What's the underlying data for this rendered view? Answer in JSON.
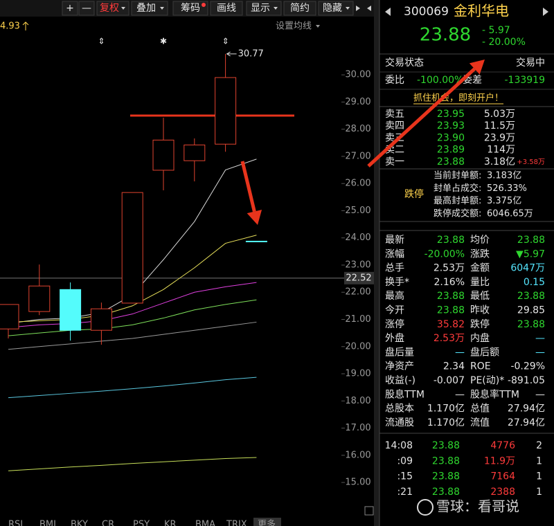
{
  "toolbar": {
    "buttons": [
      {
        "label": "+",
        "dropdown": false
      },
      {
        "label": "—",
        "dropdown": false
      },
      {
        "label": "复权",
        "dropdown": true
      },
      {
        "label": "叠加",
        "dropdown": true
      },
      {
        "label": "筹码",
        "dropdown": false,
        "dot": true
      },
      {
        "label": "画线",
        "dropdown": false
      },
      {
        "label": "显示",
        "dropdown": true
      },
      {
        "label": "简约",
        "dropdown": false
      },
      {
        "label": "隐藏",
        "dropdown": true
      }
    ]
  },
  "chart_data": {
    "type": "candlestick",
    "prev_label": "4.93",
    "ma_setting": "设置均线",
    "markers": [
      null,
      null,
      null,
      "⇕",
      null,
      "✱",
      null,
      "⇕",
      null
    ],
    "open": [
      20.65,
      21.29,
      22.1,
      20.6,
      21.6,
      26.49,
      26.84,
      27.45,
      23.88
    ],
    "close": [
      21.55,
      22.23,
      20.6,
      21.39,
      25.67,
      27.6,
      27.42,
      29.9,
      23.88
    ],
    "high": [
      21.55,
      23.02,
      22.36,
      21.62,
      25.67,
      28.42,
      27.66,
      30.77,
      23.88
    ],
    "low": [
      20.3,
      21.16,
      20.22,
      20.07,
      21.6,
      25.75,
      26.08,
      27.17,
      23.88
    ],
    "up_color": "#e0432f",
    "down_color": "#54fcfc",
    "lines": [
      {
        "color": "#d8d8d8",
        "values": [
          20.85,
          21.0,
          21.05,
          21.25,
          21.9,
          23.2,
          24.6,
          26.5,
          26.9
        ]
      },
      {
        "color": "#e8e05a",
        "values": [
          20.9,
          20.95,
          21.0,
          21.15,
          21.5,
          22.1,
          22.9,
          23.8,
          24.1
        ]
      },
      {
        "color": "#e040e0",
        "values": [
          20.7,
          20.8,
          20.85,
          20.95,
          21.2,
          21.6,
          22.0,
          22.2,
          22.36
        ]
      },
      {
        "color": "#7ee05a",
        "values": [
          20.4,
          20.5,
          20.6,
          20.65,
          20.8,
          21.05,
          21.35,
          21.55,
          21.72
        ]
      },
      {
        "color": "#9a9a9a",
        "values": [
          19.9,
          20.0,
          20.1,
          20.2,
          20.3,
          20.45,
          20.6,
          20.75,
          20.9
        ]
      },
      {
        "color": "#5ac8e0",
        "values": [
          18.12,
          18.2,
          18.28,
          18.36,
          18.45,
          18.55,
          18.66,
          18.78,
          18.87
        ]
      },
      {
        "color": "#c8e05a",
        "values": [
          15.43,
          15.5,
          15.57,
          15.63,
          15.7,
          15.76,
          15.82,
          15.88,
          15.92
        ]
      }
    ],
    "last_price": 22.52,
    "ylim": [
      13.78,
      31.99
    ],
    "yticks": [
      {
        "value": 30,
        "label": "30.00"
      },
      {
        "value": 29,
        "label": "29.00"
      },
      {
        "value": 28,
        "label": "28.00"
      },
      {
        "value": 27,
        "label": "27.00"
      },
      {
        "value": 26,
        "label": "26.00"
      },
      {
        "value": 25,
        "label": "25.00"
      },
      {
        "value": 24,
        "label": "24.00"
      },
      {
        "value": 23,
        "label": "23.00"
      },
      {
        "value": 22,
        "label": "22.00"
      },
      {
        "value": 21,
        "label": "21.00"
      },
      {
        "value": 20,
        "label": "20.00"
      },
      {
        "value": 19,
        "label": "19.00"
      },
      {
        "value": 18,
        "label": "18.00"
      },
      {
        "value": 17,
        "label": "17.00"
      },
      {
        "value": 16,
        "label": "16.00"
      },
      {
        "value": 15,
        "label": "15.00"
      }
    ],
    "indicator_tabs": [
      "RSI",
      "BMI",
      "BKY",
      "CR",
      "PSY",
      "KR",
      "BMA",
      "TRIX",
      "更多"
    ]
  },
  "quote": {
    "code": "300069",
    "name": "金利华电",
    "price": "23.88",
    "change": "- 5.97",
    "change_pct": "- 20.00%"
  },
  "status": {
    "label": "交易状态",
    "value": "交易中"
  },
  "commission": {
    "ratio_label": "委比",
    "ratio": "-100.00%",
    "diff_label": "委差",
    "diff": "-133919"
  },
  "banner": "抓住机会，即刻开户！",
  "asks": [
    {
      "level": "卖五",
      "price": "23.95",
      "volume": "5.03万"
    },
    {
      "level": "卖四",
      "price": "23.93",
      "volume": "11.5万"
    },
    {
      "level": "卖三",
      "price": "23.90",
      "volume": "23.9万"
    },
    {
      "level": "卖二",
      "price": "23.89",
      "volume": "114万"
    },
    {
      "level": "卖一",
      "price": "23.88",
      "volume": "3.18亿",
      "change": "+3.58万"
    }
  ],
  "limit_down": {
    "title": "跌停",
    "rows": [
      {
        "label": "当前封单额:",
        "value": "3.183亿"
      },
      {
        "label": "封单占成交:",
        "value": "526.33%"
      },
      {
        "label": "最高封单额:",
        "value": "3.375亿"
      },
      {
        "label": "跌停成交额:",
        "value": "6046.65万"
      }
    ]
  },
  "stats": [
    [
      "最新",
      "23.88",
      "均价",
      "23.88"
    ],
    [
      "涨幅",
      "-20.00%",
      "涨跌",
      "▼5.97"
    ],
    [
      "总手",
      "2.53万",
      "金额",
      "6047万"
    ],
    [
      "换手*",
      "2.16%",
      "量比",
      "0.15"
    ],
    [
      "最高",
      "23.88",
      "最低",
      "23.88"
    ],
    [
      "今开",
      "23.88",
      "昨收",
      "29.85"
    ],
    [
      "涨停",
      "35.82",
      "跌停",
      "23.88"
    ],
    [
      "外盘",
      "2.53万",
      "内盘",
      "—"
    ],
    [
      "盘后量",
      "—",
      "盘后额",
      "—"
    ],
    [
      "净资产",
      "2.34",
      "ROE",
      "-0.29%"
    ],
    [
      "收益(-)",
      "-0.007",
      "PE(动)*",
      "-891.05"
    ],
    [
      "股息TTM",
      "—",
      "股息率TTM",
      "—"
    ],
    [
      "总股本",
      "1.170亿",
      "总值",
      "27.94亿"
    ],
    [
      "流通股",
      "1.170亿",
      "流值",
      "27.94亿"
    ]
  ],
  "ticks": [
    [
      "14:08",
      "23.88",
      "4776",
      "2"
    ],
    [
      ":09",
      "23.88",
      "11.9万",
      "1"
    ],
    [
      ":15",
      "23.88",
      "7164",
      "1"
    ],
    [
      ":21",
      "23.88",
      "2388",
      "1"
    ]
  ],
  "watermark": "雪球：看哥说"
}
